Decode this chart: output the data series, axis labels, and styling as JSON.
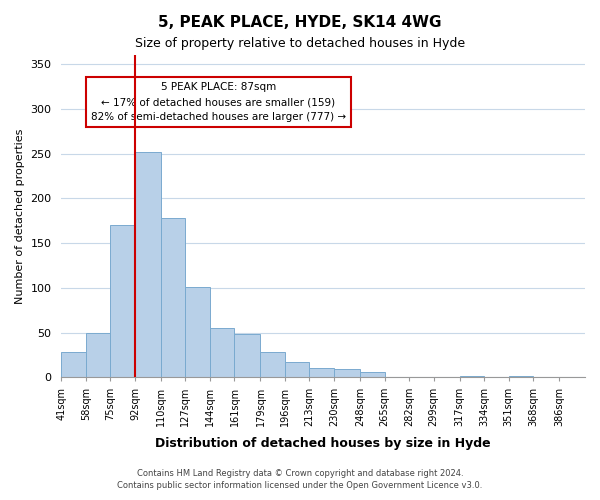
{
  "title": "5, PEAK PLACE, HYDE, SK14 4WG",
  "subtitle": "Size of property relative to detached houses in Hyde",
  "xlabel": "Distribution of detached houses by size in Hyde",
  "ylabel": "Number of detached properties",
  "bar_color": "#b8d0e8",
  "bar_edge_color": "#7aaacf",
  "background_color": "#ffffff",
  "grid_color": "#c8d8e8",
  "vline_value": 92,
  "vline_color": "#cc0000",
  "bin_labels": [
    "41sqm",
    "58sqm",
    "75sqm",
    "92sqm",
    "110sqm",
    "127sqm",
    "144sqm",
    "161sqm",
    "179sqm",
    "196sqm",
    "213sqm",
    "230sqm",
    "248sqm",
    "265sqm",
    "282sqm",
    "299sqm",
    "317sqm",
    "334sqm",
    "351sqm",
    "368sqm",
    "386sqm"
  ],
  "bin_edges": [
    41,
    58,
    75,
    92,
    110,
    127,
    144,
    161,
    179,
    196,
    213,
    230,
    248,
    265,
    282,
    299,
    317,
    334,
    351,
    368,
    386
  ],
  "bar_heights": [
    29,
    50,
    170,
    252,
    178,
    101,
    55,
    48,
    29,
    17,
    11,
    10,
    6,
    0,
    0,
    0,
    2,
    0,
    2,
    0,
    0
  ],
  "ylim": [
    0,
    360
  ],
  "yticks": [
    0,
    50,
    100,
    150,
    200,
    250,
    300,
    350
  ],
  "annotation_title": "5 PEAK PLACE: 87sqm",
  "annotation_line1": "← 17% of detached houses are smaller (159)",
  "annotation_line2": "82% of semi-detached houses are larger (777) →",
  "annotation_box_color": "#ffffff",
  "annotation_box_edge": "#cc0000",
  "footer1": "Contains HM Land Registry data © Crown copyright and database right 2024.",
  "footer2": "Contains public sector information licensed under the Open Government Licence v3.0."
}
